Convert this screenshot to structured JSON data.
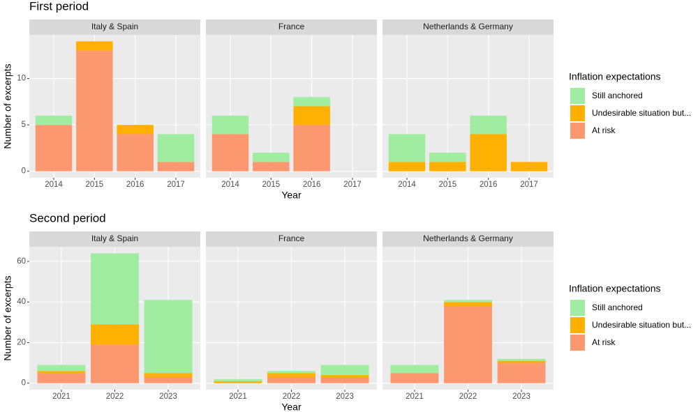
{
  "chart_data": [
    {
      "type": "bar",
      "stacked": true,
      "title": "First period",
      "x_label": "Year",
      "y_label": "Number of excerpts",
      "legend_title": "Inflation expectations",
      "facets": [
        "Italy & Spain",
        "France",
        "Netherlands & Germany"
      ],
      "categories": [
        "2014",
        "2015",
        "2016",
        "2017"
      ],
      "series": [
        {
          "name": "Still anchored",
          "color": "#a0eca0",
          "values": [
            [
              1,
              0,
              0,
              3
            ],
            [
              2,
              1,
              1,
              0
            ],
            [
              3,
              1,
              2,
              0
            ]
          ]
        },
        {
          "name": "Undesirable situation but...",
          "color": "#ffb000",
          "values": [
            [
              0,
              1,
              1,
              0
            ],
            [
              0,
              0,
              2,
              0
            ],
            [
              1,
              1,
              4,
              1
            ]
          ]
        },
        {
          "name": "At risk",
          "color": "#fc9870",
          "values": [
            [
              5,
              13,
              4,
              1
            ],
            [
              4,
              1,
              5,
              0
            ],
            [
              0,
              0,
              0,
              0
            ]
          ]
        }
      ],
      "ylim": [
        -0.7,
        14.7
      ],
      "yticks": [
        0,
        5,
        10
      ],
      "grid": true
    },
    {
      "type": "bar",
      "stacked": true,
      "title": "Second period",
      "x_label": "Year",
      "y_label": "Number of excerpts",
      "legend_title": "Inflation expectations",
      "facets": [
        "Italy & Spain",
        "France",
        "Netherlands & Germany"
      ],
      "categories": [
        "2021",
        "2022",
        "2023"
      ],
      "series": [
        {
          "name": "Still anchored",
          "color": "#a0eca0",
          "values": [
            [
              3,
              35,
              36
            ],
            [
              1,
              1,
              5
            ],
            [
              4,
              1,
              1
            ]
          ]
        },
        {
          "name": "Undesirable situation but...",
          "color": "#ffb000",
          "values": [
            [
              1,
              10,
              2
            ],
            [
              1,
              2,
              1
            ],
            [
              0,
              2,
              1
            ]
          ]
        },
        {
          "name": "At risk",
          "color": "#fc9870",
          "values": [
            [
              5,
              19,
              3
            ],
            [
              0,
              3,
              3
            ],
            [
              5,
              38,
              10
            ]
          ]
        }
      ],
      "ylim": [
        -3.2,
        67.2
      ],
      "yticks": [
        0,
        20,
        40,
        60
      ],
      "grid": true
    }
  ]
}
